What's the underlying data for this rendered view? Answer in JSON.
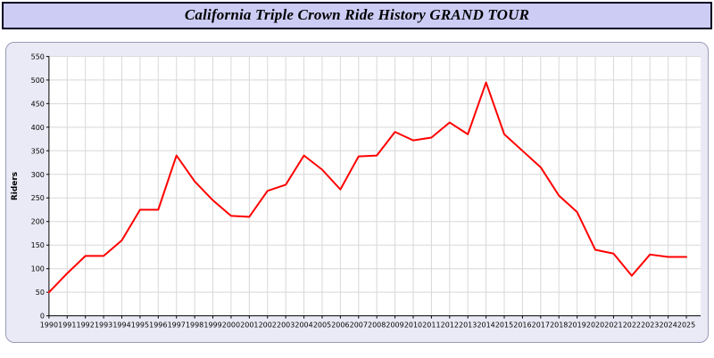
{
  "colors": {
    "title_bar_bg": "#ccccf5",
    "line": "#ff0000",
    "panel_bg": "#eaeaf6",
    "grid": "#d8d8d8"
  },
  "chart_data": {
    "type": "line",
    "title": "California Triple Crown Ride History GRAND TOUR",
    "xlabel": "",
    "ylabel": "Riders",
    "ylim": [
      0,
      550
    ],
    "ytick_step": 50,
    "grid": true,
    "legend": "none",
    "series_color": "#ff0000",
    "x": [
      1990,
      1991,
      1992,
      1993,
      1994,
      1995,
      1996,
      1997,
      1998,
      1999,
      2000,
      2001,
      2002,
      2003,
      2004,
      2005,
      2006,
      2007,
      2008,
      2009,
      2010,
      2011,
      2012,
      2013,
      2014,
      2015,
      2016,
      2017,
      2018,
      2019,
      2020,
      2021,
      2022,
      2023,
      2024,
      2025
    ],
    "values": [
      50,
      90,
      127,
      127,
      160,
      225,
      225,
      340,
      285,
      245,
      212,
      210,
      265,
      278,
      340,
      310,
      268,
      338,
      340,
      390,
      372,
      378,
      410,
      385,
      495,
      385,
      350,
      315,
      255,
      220,
      140,
      132,
      85,
      130,
      125,
      125
    ]
  }
}
